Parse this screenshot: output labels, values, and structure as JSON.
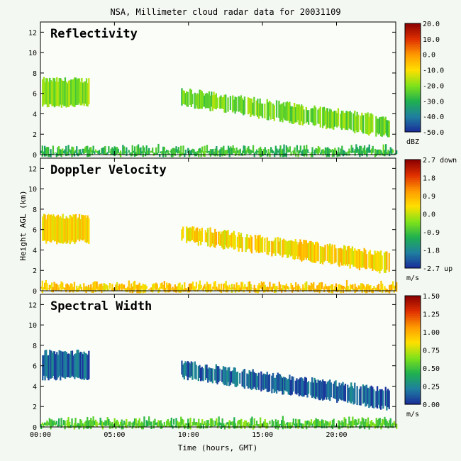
{
  "title": "NSA, Millimeter cloud radar data for 20031109",
  "xlabel": "Time (hours, GMT)",
  "ylabel": "Height AGL (km)",
  "chart_data": [
    {
      "type": "heatmap",
      "panel_label": "Reflectivity",
      "x_ticks": [
        "00:00",
        "05:00",
        "10:00",
        "15:00",
        "20:00"
      ],
      "xlim_hours": [
        0,
        24
      ],
      "y_ticks": [
        0,
        2,
        4,
        6,
        8,
        10,
        12
      ],
      "ylim": [
        0,
        13
      ],
      "colorbar": {
        "ticks": [
          "20.0",
          "10.0",
          "0.0",
          "-10.0",
          "-20.0",
          "-30.0",
          "-40.0",
          "-50.0"
        ],
        "unit": "dBZ",
        "range": [
          -50,
          20
        ],
        "colors": [
          "#1a2a9a",
          "#1f7fa0",
          "#1fb050",
          "#7fe21a",
          "#ffe000",
          "#ff9a00",
          "#e03000",
          "#8a0000"
        ]
      },
      "echoes": [
        {
          "start_hr": 0.1,
          "end_hr": 3.3,
          "base_km": 4.8,
          "top_km": 7.3,
          "value": -20
        },
        {
          "start_hr": 9.5,
          "end_hr": 23.5,
          "base_km": 1.8,
          "top_km": 6.3,
          "value": -22
        },
        {
          "start_hr": 0.0,
          "end_hr": 24.0,
          "base_km": 0.0,
          "top_km": 0.8,
          "value": -28
        }
      ]
    },
    {
      "type": "heatmap",
      "panel_label": "Doppler Velocity",
      "x_ticks": [
        "00:00",
        "05:00",
        "10:00",
        "15:00",
        "20:00"
      ],
      "xlim_hours": [
        0,
        24
      ],
      "y_ticks": [
        0,
        2,
        4,
        6,
        8,
        10,
        12
      ],
      "ylim": [
        0,
        13
      ],
      "colorbar": {
        "ticks": [
          "2.7 down",
          "1.8",
          "0.9",
          "0.0",
          "-0.9",
          "-1.8",
          "-2.7 up"
        ],
        "unit": "m/s",
        "range": [
          -2.7,
          2.7
        ],
        "colors": [
          "#1a2a9a",
          "#1f7fa0",
          "#1fb050",
          "#7fe21a",
          "#ffe000",
          "#ff9a00",
          "#e03000",
          "#8a0000"
        ]
      },
      "echoes": [
        {
          "start_hr": 0.1,
          "end_hr": 3.3,
          "base_km": 4.8,
          "top_km": 7.3,
          "value": 0.5
        },
        {
          "start_hr": 9.5,
          "end_hr": 23.5,
          "base_km": 1.8,
          "top_km": 6.3,
          "value": 0.5
        },
        {
          "start_hr": 0.0,
          "end_hr": 24.0,
          "base_km": 0.0,
          "top_km": 0.8,
          "value": 0.6
        }
      ]
    },
    {
      "type": "heatmap",
      "panel_label": "Spectral Width",
      "x_ticks": [
        "00:00",
        "05:00",
        "10:00",
        "15:00",
        "20:00"
      ],
      "xlim_hours": [
        0,
        24
      ],
      "y_ticks": [
        0,
        2,
        4,
        6,
        8,
        10,
        12
      ],
      "ylim": [
        0,
        13
      ],
      "colorbar": {
        "ticks": [
          "1.50",
          "1.25",
          "1.00",
          "0.75",
          "0.50",
          "0.25",
          "0.00"
        ],
        "unit": "m/s",
        "range": [
          0,
          1.5
        ],
        "colors": [
          "#1a2a9a",
          "#1f7fa0",
          "#1fb050",
          "#7fe21a",
          "#ffe000",
          "#ff9a00",
          "#e03000",
          "#8a0000"
        ]
      },
      "echoes": [
        {
          "start_hr": 0.1,
          "end_hr": 3.3,
          "base_km": 4.8,
          "top_km": 7.3,
          "value": 0.15
        },
        {
          "start_hr": 9.5,
          "end_hr": 23.5,
          "base_km": 1.8,
          "top_km": 6.3,
          "value": 0.15
        },
        {
          "start_hr": 0.0,
          "end_hr": 24.0,
          "base_km": 0.0,
          "top_km": 0.8,
          "value": 0.55
        }
      ]
    }
  ]
}
